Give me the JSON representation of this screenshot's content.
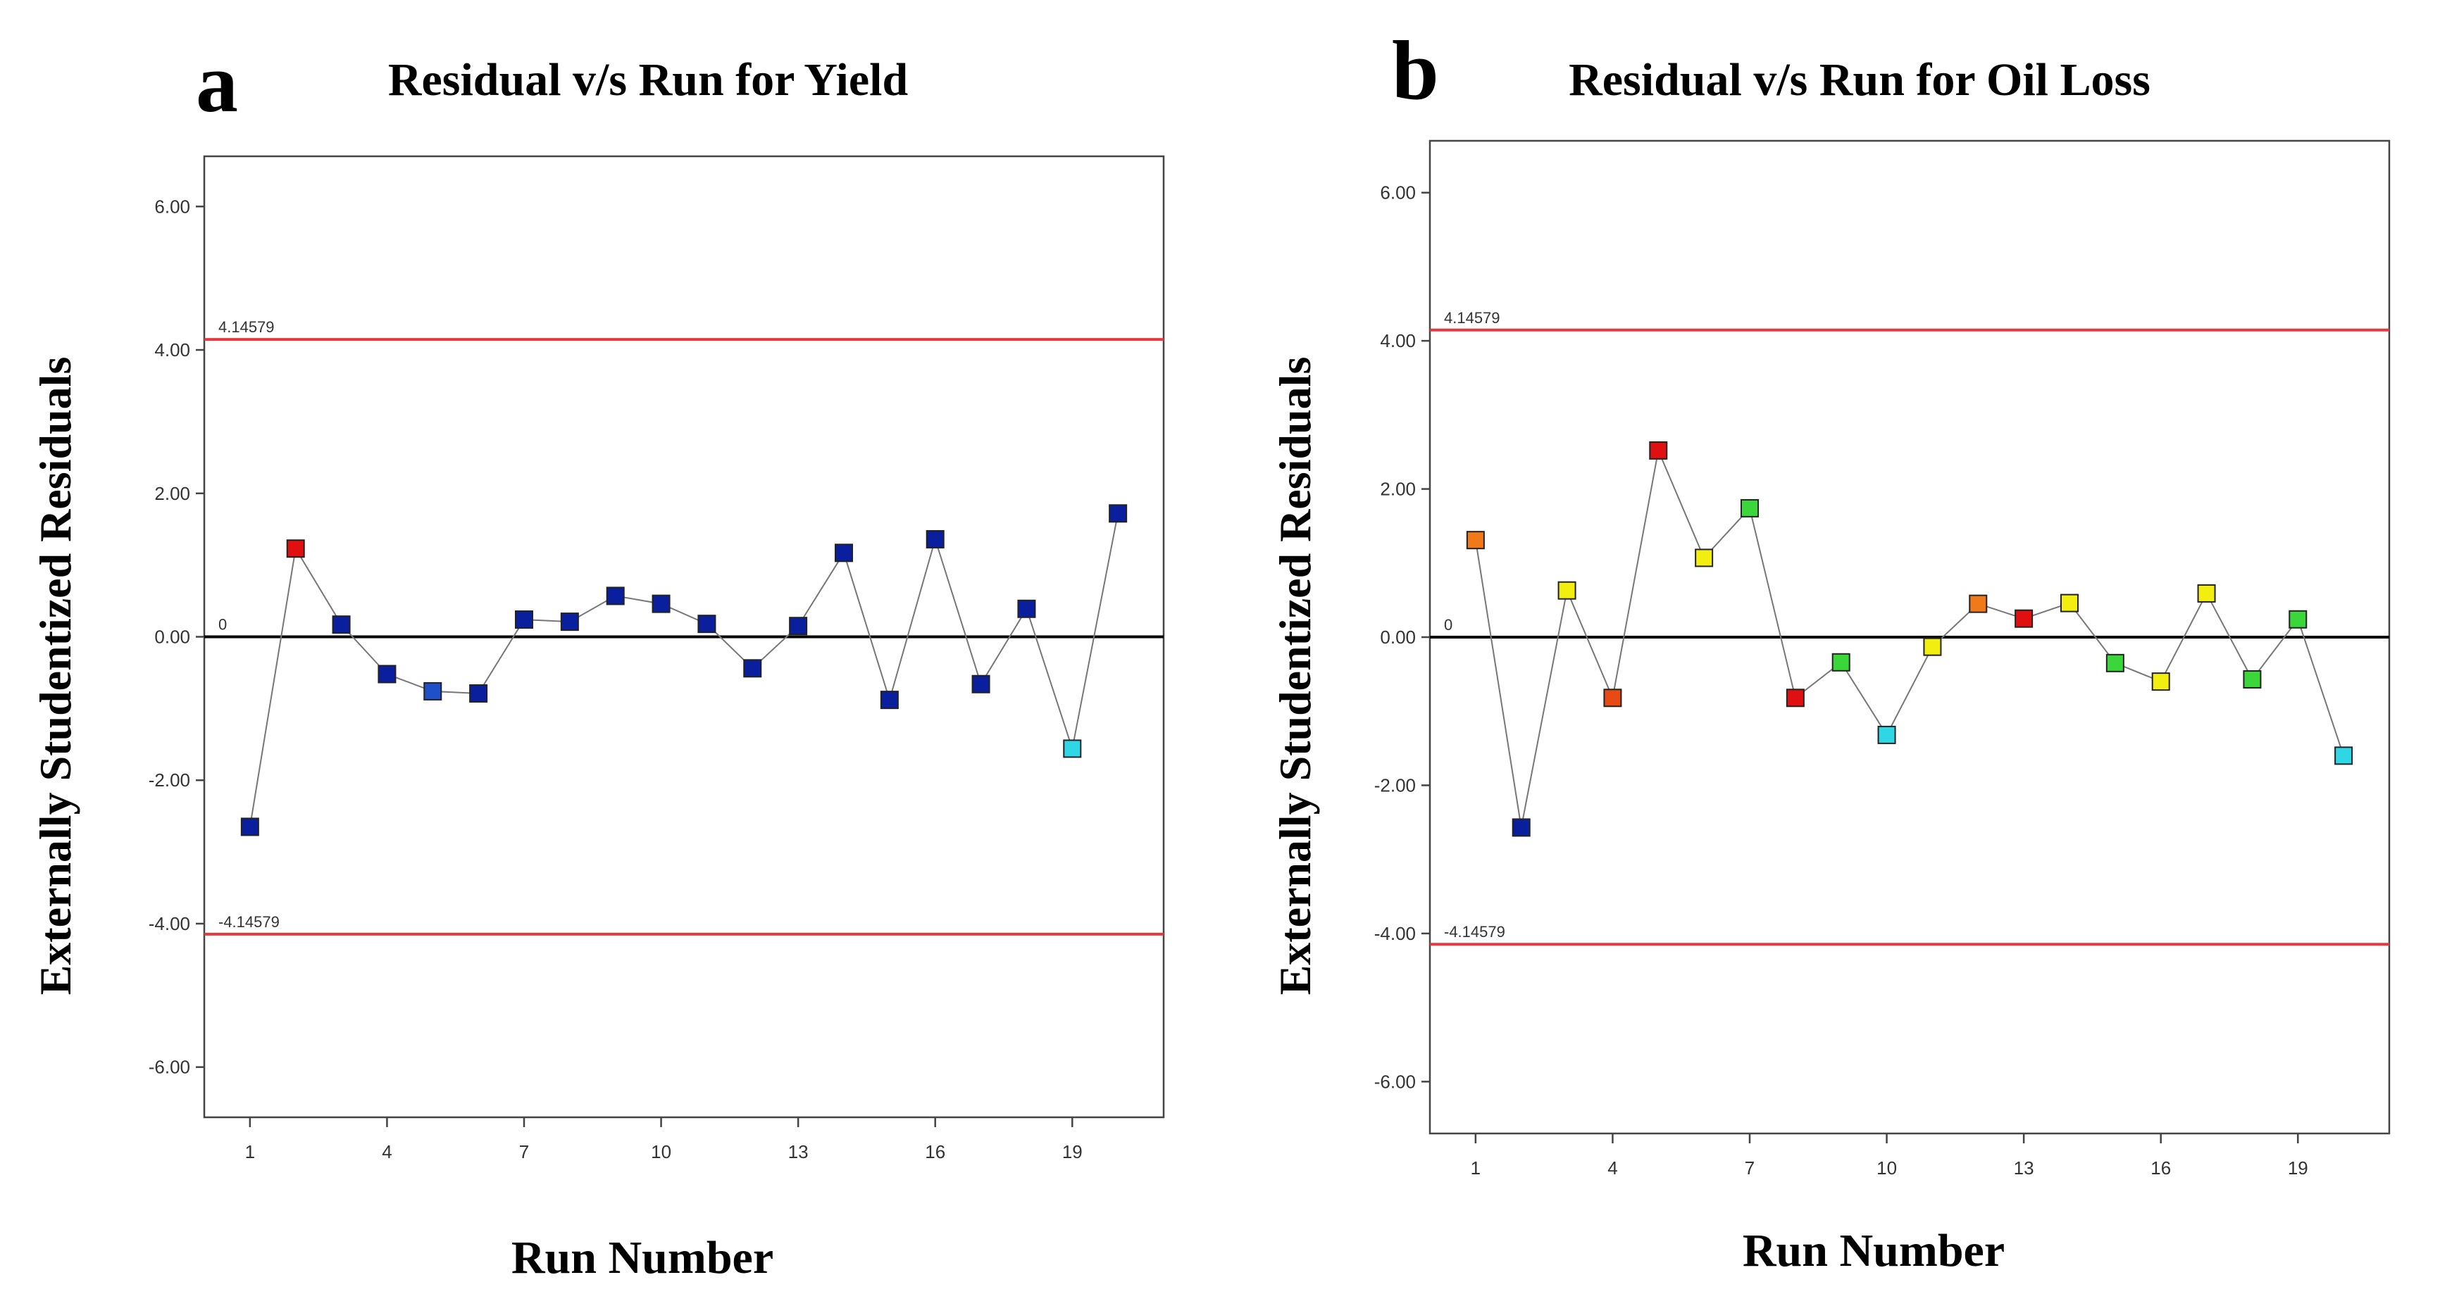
{
  "chart_data": [
    {
      "type": "scatter",
      "panel_label": "a",
      "title": "Residual v/s Run for Yield",
      "xlabel": "Run Number",
      "ylabel": "Externally Studentized Residuals",
      "xlim": [
        0,
        21
      ],
      "ylim": [
        -6.7,
        6.7
      ],
      "x_ticks": [
        1,
        4,
        7,
        10,
        13,
        16,
        19
      ],
      "x_tick_labels": [
        "1",
        "4",
        "7",
        "10",
        "13",
        "16",
        "19"
      ],
      "y_ticks": [
        -6,
        -4,
        -2,
        0,
        2,
        4,
        6
      ],
      "y_tick_labels": [
        "-6.00",
        "-4.00",
        "-2.00",
        "0.00",
        "2.00",
        "4.00",
        "6.00"
      ],
      "upper_limit": 4.14579,
      "lower_limit": -4.14579,
      "upper_limit_label": "4.14579",
      "lower_limit_label": "-4.14579",
      "zero_label": "0",
      "limit_color": "#e8383d",
      "zero_line_color": "#000000",
      "points": [
        {
          "x": 1,
          "y": -2.65,
          "color": "#0a1f9e"
        },
        {
          "x": 2,
          "y": 1.23,
          "color": "#e01010"
        },
        {
          "x": 3,
          "y": 0.17,
          "color": "#0a1f9e"
        },
        {
          "x": 4,
          "y": -0.52,
          "color": "#0a1f9e"
        },
        {
          "x": 5,
          "y": -0.76,
          "color": "#1f4fc9"
        },
        {
          "x": 6,
          "y": -0.79,
          "color": "#0a1f9e"
        },
        {
          "x": 7,
          "y": 0.24,
          "color": "#0a1f9e"
        },
        {
          "x": 8,
          "y": 0.21,
          "color": "#0a1f9e"
        },
        {
          "x": 9,
          "y": 0.57,
          "color": "#0a1f9e"
        },
        {
          "x": 10,
          "y": 0.46,
          "color": "#0a1f9e"
        },
        {
          "x": 11,
          "y": 0.18,
          "color": "#0a1f9e"
        },
        {
          "x": 12,
          "y": -0.44,
          "color": "#0a1f9e"
        },
        {
          "x": 13,
          "y": 0.15,
          "color": "#0a1f9e"
        },
        {
          "x": 14,
          "y": 1.17,
          "color": "#0a1f9e"
        },
        {
          "x": 15,
          "y": -0.88,
          "color": "#0a1f9e"
        },
        {
          "x": 16,
          "y": 1.36,
          "color": "#0a1f9e"
        },
        {
          "x": 17,
          "y": -0.66,
          "color": "#0a1f9e"
        },
        {
          "x": 18,
          "y": 0.39,
          "color": "#0a1f9e"
        },
        {
          "x": 19,
          "y": -1.56,
          "color": "#2fd6e6"
        },
        {
          "x": 20,
          "y": 1.72,
          "color": "#0a1f9e"
        }
      ]
    },
    {
      "type": "scatter",
      "panel_label": "b",
      "title": "Residual v/s Run for Oil Loss",
      "xlabel": "Run Number",
      "ylabel": "Externally Studentized Residuals",
      "xlim": [
        0,
        21
      ],
      "ylim": [
        -6.7,
        6.7
      ],
      "x_ticks": [
        1,
        4,
        7,
        10,
        13,
        16,
        19
      ],
      "x_tick_labels": [
        "1",
        "4",
        "7",
        "10",
        "13",
        "16",
        "19"
      ],
      "y_ticks": [
        -6,
        -4,
        -2,
        0,
        2,
        4,
        6
      ],
      "y_tick_labels": [
        "-6.00",
        "-4.00",
        "-2.00",
        "0.00",
        "2.00",
        "4.00",
        "6.00"
      ],
      "upper_limit": 4.14579,
      "lower_limit": -4.14579,
      "upper_limit_label": "4.14579",
      "lower_limit_label": "-4.14579",
      "zero_label": "0",
      "limit_color": "#e8383d",
      "zero_line_color": "#000000",
      "points": [
        {
          "x": 1,
          "y": 1.31,
          "color": "#f07a1a"
        },
        {
          "x": 2,
          "y": -2.57,
          "color": "#0a1f9e"
        },
        {
          "x": 3,
          "y": 0.63,
          "color": "#f2ee10"
        },
        {
          "x": 4,
          "y": -0.82,
          "color": "#e84a14"
        },
        {
          "x": 5,
          "y": 2.52,
          "color": "#e01010"
        },
        {
          "x": 6,
          "y": 1.07,
          "color": "#f2ee10"
        },
        {
          "x": 7,
          "y": 1.74,
          "color": "#3ad63a"
        },
        {
          "x": 8,
          "y": -0.82,
          "color": "#e01010"
        },
        {
          "x": 9,
          "y": -0.34,
          "color": "#3ad63a"
        },
        {
          "x": 10,
          "y": -1.32,
          "color": "#2fd6e6"
        },
        {
          "x": 11,
          "y": -0.13,
          "color": "#f2ee10"
        },
        {
          "x": 12,
          "y": 0.45,
          "color": "#f07a1a"
        },
        {
          "x": 13,
          "y": 0.25,
          "color": "#e01010"
        },
        {
          "x": 14,
          "y": 0.46,
          "color": "#f2ee10"
        },
        {
          "x": 15,
          "y": -0.35,
          "color": "#3ad63a"
        },
        {
          "x": 16,
          "y": -0.6,
          "color": "#f2ee10"
        },
        {
          "x": 17,
          "y": 0.59,
          "color": "#f2ee10"
        },
        {
          "x": 18,
          "y": -0.57,
          "color": "#3ad63a"
        },
        {
          "x": 19,
          "y": 0.24,
          "color": "#3ad63a"
        },
        {
          "x": 20,
          "y": -1.6,
          "color": "#2fd6e6"
        }
      ]
    }
  ]
}
